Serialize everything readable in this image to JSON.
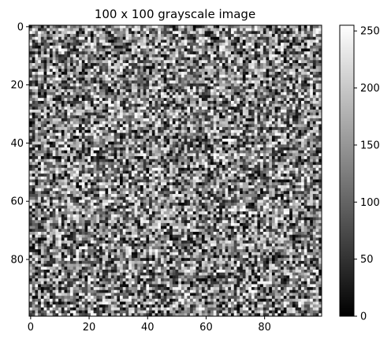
{
  "chart_data": {
    "type": "heatmap",
    "title": "100 x 100 grayscale image",
    "rows": 100,
    "cols": 100,
    "value_range": [
      0,
      255
    ],
    "colormap": "gray",
    "interpolation": "nearest",
    "pixel_values": "pseudo-random integers 0-255 (uniform noise)",
    "x_ticks": [
      0,
      20,
      40,
      60,
      80
    ],
    "y_ticks": [
      0,
      20,
      40,
      60,
      80
    ],
    "colorbar": {
      "ticks": [
        0,
        50,
        100,
        150,
        200,
        250
      ],
      "min": 0,
      "max": 255
    },
    "grid": false
  }
}
